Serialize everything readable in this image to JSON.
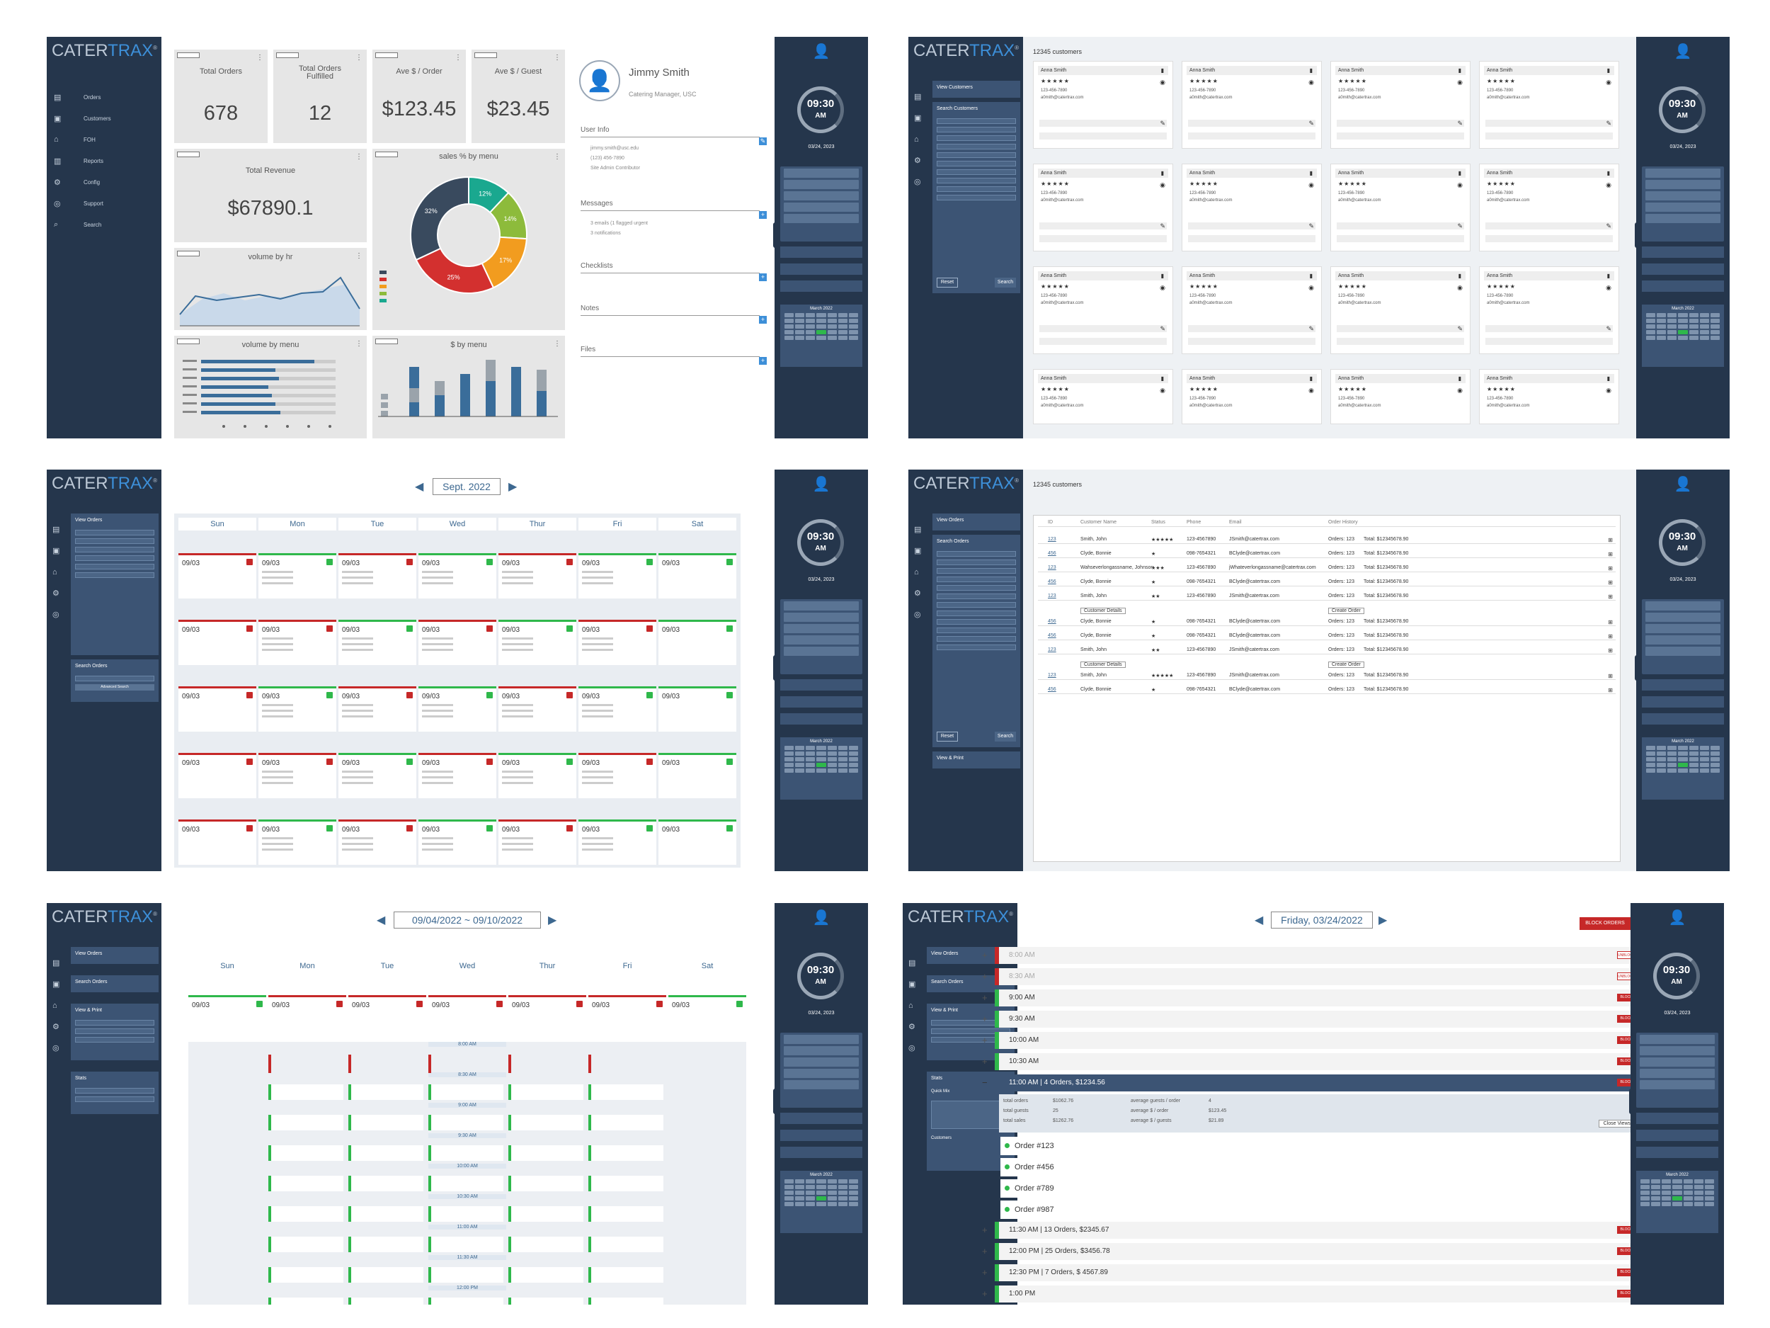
{
  "brand": {
    "cater": "CATER",
    "trax": "TRAX",
    "mark": "®"
  },
  "nav": [
    "Orders",
    "Customers",
    "FOH",
    "Reports",
    "Config",
    "Support",
    "Search"
  ],
  "right": {
    "time": "09:30",
    "ampm": "AM",
    "date": "03/24, 2023",
    "calendar_title": "March 2022"
  },
  "dashboard": {
    "cards": [
      {
        "title": "Total Orders",
        "value": "678"
      },
      {
        "title": "Total Orders\nFulfilled",
        "value": "12"
      },
      {
        "title": "Ave $ / Order",
        "value": "$123.45"
      },
      {
        "title": "Ave $ / Guest",
        "value": "$23.45"
      }
    ],
    "revenue_title": "Total Revenue",
    "revenue_value": "$67890.1",
    "sales_title": "sales % by menu",
    "pie": [
      {
        "label": "12%",
        "value": 12,
        "color": "#1aa88f"
      },
      {
        "label": "14%",
        "value": 14,
        "color": "#8dbb3b"
      },
      {
        "label": "17%",
        "value": 17,
        "color": "#f29c1f"
      },
      {
        "label": "25%",
        "value": 25,
        "color": "#d3302f"
      },
      {
        "label": "32%",
        "value": 32,
        "color": "#394a5e"
      }
    ],
    "volume_hr_title": "volume by hr",
    "volume_menu_title": "volume by menu",
    "dollar_menu_title": "$ by menu",
    "profile": {
      "name": "Jimmy Smith",
      "role": "Catering Manager, USC",
      "user_info": "User Info",
      "email": "jimmy.smith@usc.edu",
      "phone": "(123) 456-7890",
      "admin": "Site Admin Contributor",
      "messages": "Messages",
      "msg1": "3 emails (1 flagged urgent",
      "msg2": "3 notifications",
      "checklists": "Checklists",
      "notes": "Notes",
      "files": "Files"
    }
  },
  "customers": {
    "title": "12345 customers",
    "view_customers": "View Customers",
    "search_customers": "Search Customers",
    "reset": "Reset",
    "search": "Search",
    "card_name": "Anna Smith",
    "card_stars": "★★★★★",
    "card_phone": "123-456-7890",
    "card_email": "a0mith@catertrax.com"
  },
  "calendar": {
    "month": "Sept. 2022",
    "days": [
      "Sun",
      "Mon",
      "Tue",
      "Wed",
      "Thur",
      "Fri",
      "Sat"
    ],
    "cell_date": "09/03",
    "view_orders": "View Orders",
    "search_orders": "Search Orders",
    "advanced": "Advanced Search"
  },
  "customer_table": {
    "title": "12345 customers",
    "cols": [
      "ID",
      "Customer Name",
      "Status",
      "Phone",
      "Email",
      "Order History"
    ],
    "rows": [
      [
        "123",
        "Smith, John",
        "★★★★★",
        "123-4567890",
        "JSmith@catertrax.com",
        "Orders: 123",
        "Total: $12345678.90"
      ],
      [
        "456",
        "Clyde, Bonnie",
        "★",
        "098-7654321",
        "BClyde@catertrax.com",
        "Orders: 123",
        "Total: $12345678.90"
      ],
      [
        "123",
        "Wahseverlongassname, Johnson",
        "★★★",
        "123-4567890",
        "jWhateverlongassname@catertrax.com",
        "Orders: 123",
        "Total: $12345678.90"
      ],
      [
        "456",
        "Clyde, Bonnie",
        "★",
        "098-7654321",
        "BClyde@catertrax.com",
        "Orders: 123",
        "Total: $12345678.90"
      ],
      [
        "123",
        "Smith, John",
        "★★",
        "123-4567890",
        "JSmith@catertrax.com",
        "Orders: 123",
        "Total: $12345678.90"
      ],
      [
        "456",
        "Clyde, Bonnie",
        "★",
        "098-7654321",
        "BClyde@catertrax.com",
        "Orders: 123",
        "Total: $12345678.90"
      ],
      [
        "456",
        "Clyde, Bonnie",
        "★",
        "098-7654321",
        "BClyde@catertrax.com",
        "Orders: 123",
        "Total: $12345678.90"
      ],
      [
        "123",
        "Smith, John",
        "★★",
        "123-4567890",
        "JSmith@catertrax.com",
        "Orders: 123",
        "Total: $12345678.90"
      ],
      [
        "123",
        "Smith, John",
        "★★★★★",
        "123-4567890",
        "JSmith@catertrax.com",
        "Orders: 123",
        "Total: $12345678.90"
      ],
      [
        "456",
        "Clyde, Bonnie",
        "★",
        "098-7654321",
        "BClyde@catertrax.com",
        "Orders: 123",
        "Total: $12345678.90"
      ]
    ],
    "customer_details": "Customer Details",
    "create_order": "Create Order"
  },
  "week": {
    "range": "09/04/2022 ~ 09/10/2022",
    "times": [
      "8:00 AM",
      "8:30 AM",
      "9:00 AM",
      "9:30 AM",
      "10:00 AM",
      "10:30 AM",
      "11:00 AM",
      "11:30 AM",
      "12:00 PM"
    ],
    "view_print": "View & Print",
    "stats": "Stats"
  },
  "day": {
    "title": "Friday, 03/24/2022",
    "block_orders": "BLOCK ORDERS",
    "slots": [
      "8:00 AM",
      "8:30 AM",
      "9:00 AM",
      "9:30 AM",
      "10:00 AM",
      "10:30 AM"
    ],
    "active": "11:00 AM  |  4 Orders, $1234.56",
    "summary": [
      [
        "total orders",
        "$1062.76",
        "average guests / order",
        "4"
      ],
      [
        "total guests",
        "25",
        "average $ / order",
        "$123.45"
      ],
      [
        "total sales",
        "$1262.76",
        "average $ / guests",
        "$21.89"
      ]
    ],
    "close_views": "Close Views",
    "orders": [
      "Order #123",
      "Order #456",
      "Order #789",
      "Order #987"
    ],
    "later": [
      "11:30 AM  |  13 Orders, $2345.67",
      "12:00 PM  |  25 Orders, $3456.78",
      "12:30 PM  |  7 Orders, $ 4567.89",
      "1:00 PM"
    ],
    "block": "BLOCK",
    "unblock": "UNBLOCK",
    "quick_mix": "Quick Mix",
    "customers": "Customers"
  }
}
